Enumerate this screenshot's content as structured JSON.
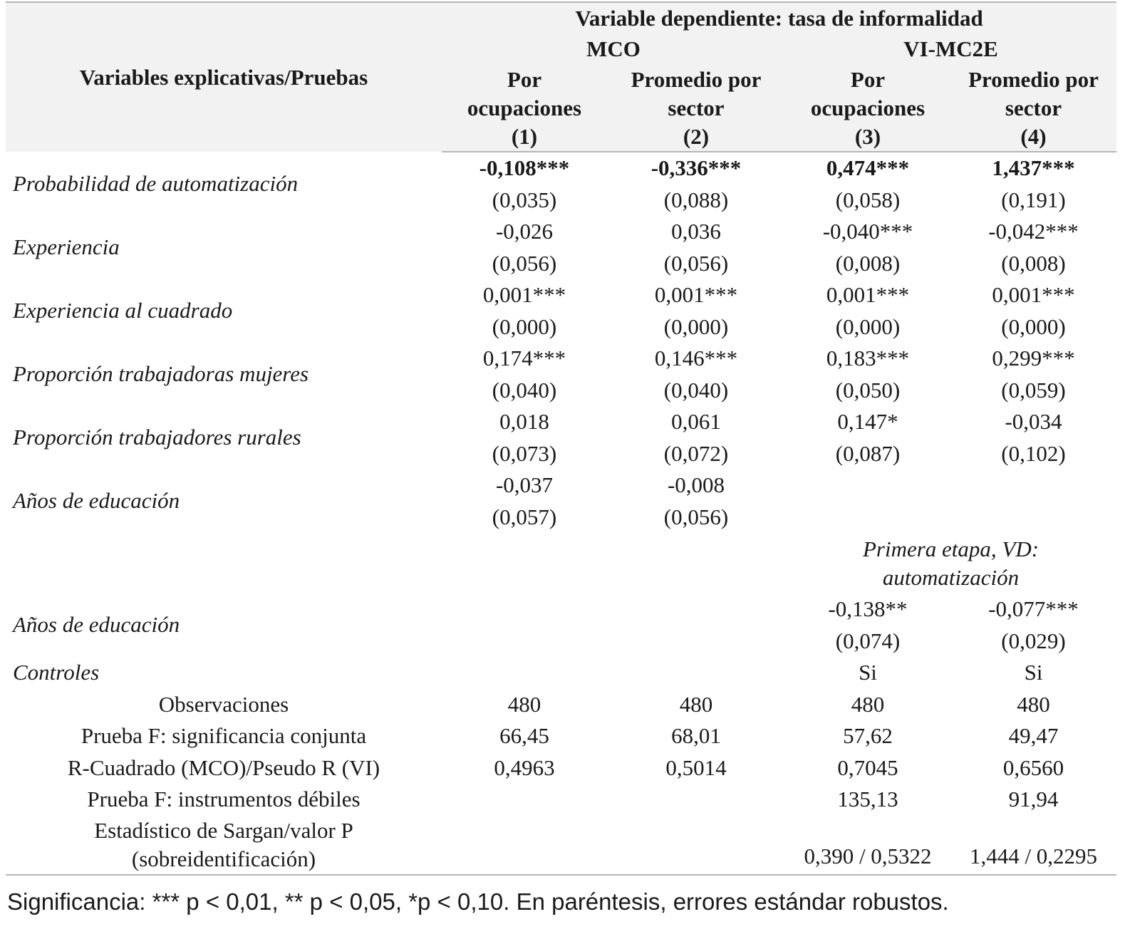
{
  "header": {
    "label_column": "Variables explicativas/Pruebas",
    "dependent_variable": "Variable dependiente: tasa de informalidad",
    "groups": [
      "MCO",
      "VI-MC2E"
    ],
    "columns": [
      {
        "line1": "Por",
        "line2": "ocupaciones",
        "num": "(1)"
      },
      {
        "line1": "Promedio por",
        "line2": "sector",
        "num": "(2)"
      },
      {
        "line1": "Por",
        "line2": "ocupaciones",
        "num": "(3)"
      },
      {
        "line1": "Promedio por",
        "line2": "sector",
        "num": "(4)"
      }
    ]
  },
  "rows": [
    {
      "label": "Probabilidad de automatización",
      "coef": [
        "-0,108***",
        "-0,336***",
        "0,474***",
        "1,437***"
      ],
      "se": [
        "(0,035)",
        "(0,088)",
        "(0,058)",
        "(0,191)"
      ]
    },
    {
      "label": "Experiencia",
      "coef": [
        "-0,026",
        "0,036",
        "-0,040***",
        "-0,042***"
      ],
      "se": [
        "(0,056)",
        "(0,056)",
        "(0,008)",
        "(0,008)"
      ]
    },
    {
      "label": "Experiencia al cuadrado",
      "coef": [
        "0,001***",
        "0,001***",
        "0,001***",
        "0,001***"
      ],
      "se": [
        "(0,000)",
        "(0,000)",
        "(0,000)",
        "(0,000)"
      ]
    },
    {
      "label": "Proporción trabajadoras mujeres",
      "coef": [
        "0,174***",
        "0,146***",
        "0,183***",
        "0,299***"
      ],
      "se": [
        "(0,040)",
        "(0,040)",
        "(0,050)",
        "(0,059)"
      ]
    },
    {
      "label": "Proporción trabajadores rurales",
      "coef": [
        "0,018",
        "0,061",
        "0,147*",
        "-0,034"
      ],
      "se": [
        "(0,073)",
        "(0,072)",
        "(0,087)",
        "(0,102)"
      ]
    },
    {
      "label": "Años de educación",
      "coef": [
        "-0,037",
        "-0,008",
        "",
        ""
      ],
      "se": [
        "(0,057)",
        "(0,056)",
        "",
        ""
      ]
    }
  ],
  "first_stage": {
    "title_line1": "Primera etapa, VD:",
    "title_line2": "automatización",
    "label": "Años de educación",
    "coef": [
      "",
      "",
      "-0,138**",
      "-0,077***"
    ],
    "se": [
      "",
      "",
      "(0,074)",
      "(0,029)"
    ]
  },
  "controls": {
    "label": "Controles",
    "values": [
      "",
      "",
      "Si",
      "Si"
    ]
  },
  "stats": [
    {
      "label": "Observaciones",
      "values": [
        "480",
        "480",
        "480",
        "480"
      ]
    },
    {
      "label": "Prueba F: significancia conjunta",
      "values": [
        "66,45",
        "68,01",
        "57,62",
        "49,47"
      ]
    },
    {
      "label": "R-Cuadrado (MCO)/Pseudo R (VI)",
      "values": [
        "0,4963",
        "0,5014",
        "0,7045",
        "0,6560"
      ]
    },
    {
      "label": "Prueba F: instrumentos débiles",
      "values": [
        "",
        "",
        "135,13",
        "91,94"
      ]
    }
  ],
  "sargan": {
    "label_line1": "Estadístico de Sargan/valor P",
    "label_line2": "(sobreidentificación)",
    "values": [
      "",
      "",
      "0,390 / 0,5322",
      "1,444 / 0,2295"
    ]
  },
  "footnote": "Significancia: *** p < 0,01, ** p < 0,05, *p < 0,10. En paréntesis, errores estándar robustos."
}
